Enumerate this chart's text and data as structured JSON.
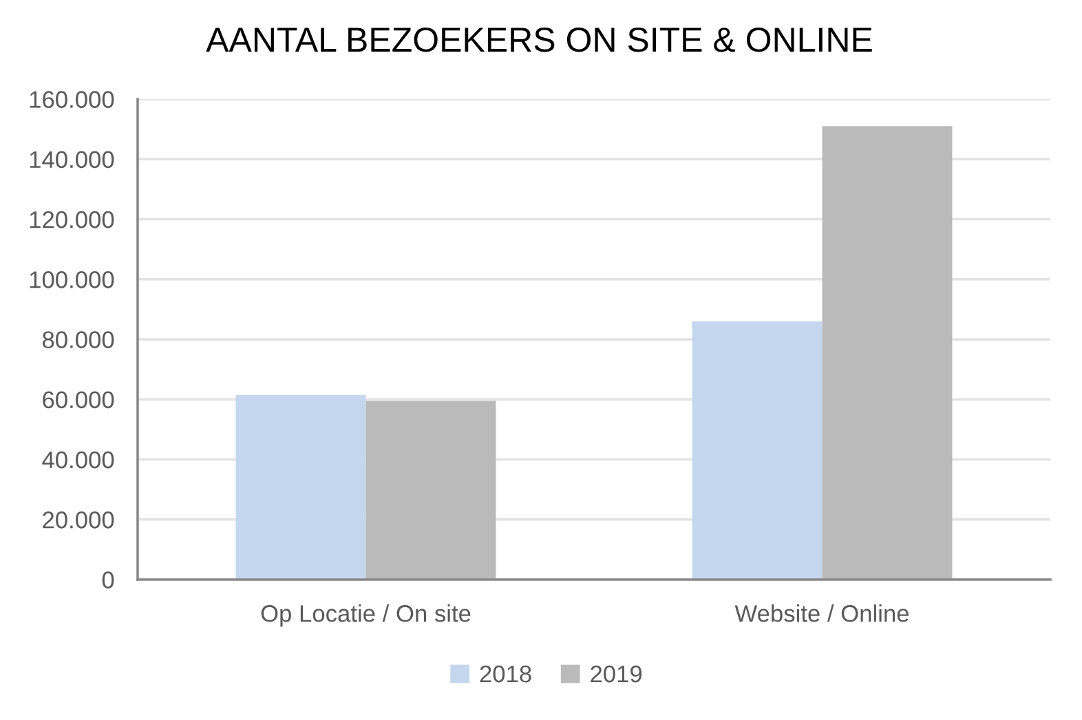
{
  "chart_data": {
    "type": "bar",
    "title": "AANTAL BEZOEKERS ON SITE & ONLINE",
    "categories": [
      "Op Locatie / On site",
      "Website / Online"
    ],
    "series": [
      {
        "name": "2018",
        "color": "#c5d7ee",
        "values": [
          61500,
          86000
        ]
      },
      {
        "name": "2019",
        "color": "#bababa",
        "values": [
          59500,
          151000
        ]
      }
    ],
    "ylim": [
      0,
      160000
    ],
    "yticks": [
      0,
      {
        "value": 20000,
        "label": "20.000"
      },
      {
        "value": 40000,
        "label": "40.000"
      },
      {
        "value": 60000,
        "label": "60.000"
      },
      {
        "value": 80000,
        "label": "80.000"
      },
      {
        "value": 100000,
        "label": "100.000"
      },
      {
        "value": 120000,
        "label": "120.000"
      },
      {
        "value": 140000,
        "label": "140.000"
      },
      {
        "value": 160000,
        "label": "160.000"
      }
    ],
    "grid": "y",
    "legend": "bottom"
  }
}
